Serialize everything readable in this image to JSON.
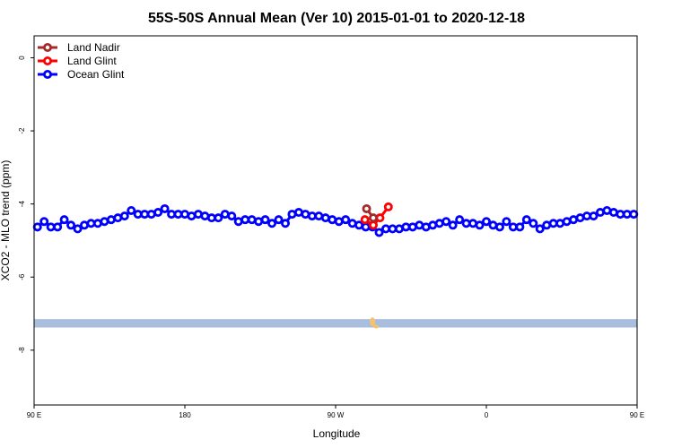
{
  "chart_data": {
    "type": "line",
    "title": "55S-50S Annual Mean (Ver 10)   2015-01-01 to 2020-12-18",
    "xlabel": "Longitude",
    "ylabel": "XCO2 - MLO trend (ppm)",
    "xlim": [
      -90,
      270
    ],
    "ylim": [
      -9.5,
      0.6
    ],
    "x_ticks": [
      {
        "value": -90,
        "label": "90 E"
      },
      {
        "value": 0,
        "label": "180"
      },
      {
        "value": 90,
        "label": "90 W"
      },
      {
        "value": 180,
        "label": "0"
      },
      {
        "value": 270,
        "label": "90 E"
      },
      {
        "value": 360,
        "label": "180"
      }
    ],
    "y_ticks": [
      {
        "value": 0,
        "label": "0"
      },
      {
        "value": -2,
        "label": "-2"
      },
      {
        "value": -4,
        "label": "-4"
      },
      {
        "value": -6,
        "label": "-6"
      },
      {
        "value": -8,
        "label": "-8"
      }
    ],
    "legend": {
      "position": "top-left",
      "entries": [
        {
          "name": "Land Nadir",
          "color": "#a52a2a"
        },
        {
          "name": "Land Glint",
          "color": "#ff0000"
        },
        {
          "name": "Ocean Glint",
          "color": "#0000ff"
        }
      ]
    },
    "series": [
      {
        "name": "Land Nadir",
        "color": "#a52a2a",
        "x": [
          108.5,
          112.5
        ],
        "y": [
          -4.13,
          -4.38
        ]
      },
      {
        "name": "Land Glint",
        "color": "#ff0000",
        "x": [
          107.5,
          112.5,
          116.5,
          121.5
        ],
        "y": [
          -4.43,
          -4.58,
          -4.38,
          -4.08
        ]
      },
      {
        "name": "Ocean Glint",
        "color": "#0000ff",
        "x": [
          -88.0,
          -84.0,
          -80.0,
          -76.0,
          -72.0,
          -68.0,
          -64.0,
          -60.0,
          -56.0,
          -52.0,
          -48.0,
          -44.0,
          -40.0,
          -36.0,
          -32.0,
          -28.0,
          -24.0,
          -20.0,
          -16.0,
          -12.0,
          -8.0,
          -4.0,
          0.0,
          4.0,
          8.0,
          12.0,
          16.0,
          20.0,
          24.0,
          28.0,
          32.0,
          36.0,
          40.0,
          44.0,
          48.0,
          52.0,
          56.0,
          60.0,
          64.0,
          68.0,
          72.0,
          76.0,
          80.0,
          84.0,
          88.0,
          92.0,
          96.0,
          100.0,
          104.0,
          108.0,
          112.0,
          116.0,
          120.0,
          124.0,
          128.0,
          132.0,
          136.0,
          140.0,
          144.0,
          148.0,
          152.0,
          156.0,
          160.0,
          164.0,
          168.0,
          172.0,
          176.0,
          180.0,
          184.0,
          188.0,
          192.0,
          196.0,
          200.0,
          204.0,
          208.0,
          212.0,
          216.0,
          220.0,
          224.0,
          228.0,
          232.0,
          236.0,
          240.0,
          244.0,
          248.0,
          252.0,
          256.0,
          260.0,
          264.0,
          268.0
        ],
        "y": [
          -4.63,
          -4.48,
          -4.63,
          -4.63,
          -4.43,
          -4.58,
          -4.68,
          -4.58,
          -4.53,
          -4.53,
          -4.48,
          -4.43,
          -4.38,
          -4.33,
          -4.18,
          -4.28,
          -4.28,
          -4.28,
          -4.23,
          -4.13,
          -4.28,
          -4.28,
          -4.28,
          -4.33,
          -4.28,
          -4.33,
          -4.38,
          -4.38,
          -4.28,
          -4.33,
          -4.48,
          -4.43,
          -4.43,
          -4.48,
          -4.43,
          -4.53,
          -4.43,
          -4.53,
          -4.28,
          -4.23,
          -4.28,
          -4.33,
          -4.33,
          -4.38,
          -4.43,
          -4.48,
          -4.43,
          -4.53,
          -4.58,
          -4.63,
          -4.63,
          -4.78,
          -4.68,
          -4.68,
          -4.68,
          -4.63,
          -4.63,
          -4.58,
          -4.63,
          -4.58,
          -4.53,
          -4.48,
          -4.58,
          -4.43,
          -4.53,
          -4.53,
          -4.58,
          -4.48,
          -4.58,
          -4.63,
          -4.48,
          -4.63,
          -4.63,
          -4.43,
          -4.53,
          -4.68,
          -4.58,
          -4.53,
          -4.53,
          -4.48,
          -4.43,
          -4.38,
          -4.33,
          -4.33,
          -4.23,
          -4.18,
          -4.23,
          -4.28,
          -4.28,
          -4.28
        ]
      }
    ],
    "background_band": {
      "y_range": [
        -7.38,
        -7.15
      ],
      "color": "#a9bedc",
      "spot_color": "#f5c36e"
    }
  }
}
